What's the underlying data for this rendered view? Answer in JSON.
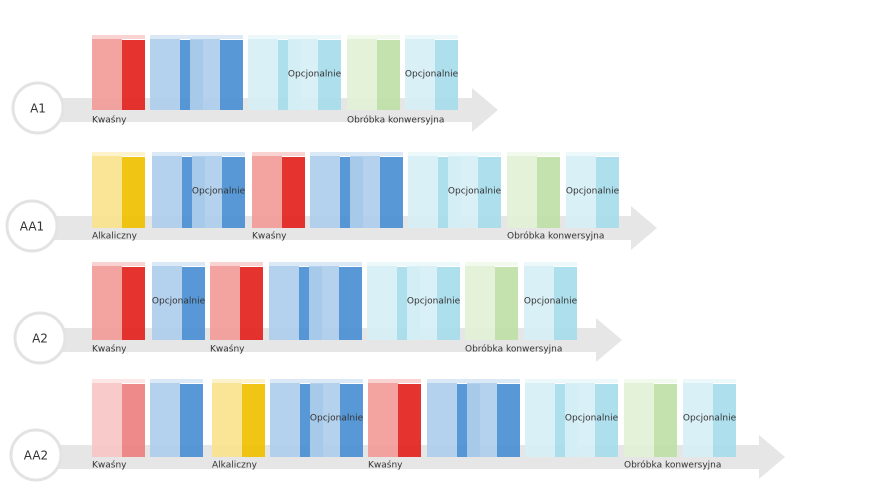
{
  "rows": [
    {
      "label": "A1",
      "tanks": [
        {
          "color": "#e3221d"
        },
        {
          "color": "#4a8fd2"
        },
        {
          "color": "#4a8fd2"
        },
        {
          "color": "#a6dcea"
        },
        {
          "color": "#a6dcea",
          "label": "Opcjonalnie"
        },
        {
          "color": "#bfe0a6"
        },
        {
          "color": "#a6dcea",
          "label": "Opcjonalnie"
        }
      ],
      "steps": [
        "Kwaśny",
        "Obróbka konwersyjna"
      ]
    },
    {
      "label": "AA1",
      "tanks": [
        {
          "color": "#f0c000"
        },
        {
          "color": "#4a8fd2"
        },
        {
          "color": "#4a8fd2",
          "label": "Opcjonalnie"
        },
        {
          "color": "#e3221d"
        },
        {
          "color": "#4a8fd2"
        },
        {
          "color": "#4a8fd2"
        },
        {
          "color": "#a6dcea"
        },
        {
          "color": "#a6dcea",
          "label": "Opcjonalnie"
        },
        {
          "color": "#bfe0a6"
        },
        {
          "color": "#a6dcea",
          "label": "Opcjonalnie"
        }
      ],
      "steps": [
        "Alkaliczny",
        "Kwaśny",
        "Obróbka konwersyjna"
      ]
    },
    {
      "label": "A2",
      "tanks": [
        {
          "color": "#e3221d"
        },
        {
          "color": "#4a8fd2",
          "label": "Opcjonalnie"
        },
        {
          "color": "#e3221d"
        },
        {
          "color": "#4a8fd2"
        },
        {
          "color": "#4a8fd2"
        },
        {
          "color": "#a6dcea"
        },
        {
          "color": "#a6dcea",
          "label": "Opcjonalnie"
        },
        {
          "color": "#bfe0a6"
        },
        {
          "color": "#a6dcea",
          "label": "Opcjonalnie"
        }
      ],
      "steps": [
        "Kwaśny",
        "Kwaśny",
        "Obróbka konwersyjna"
      ]
    },
    {
      "label": "AA2",
      "tanks": [
        {
          "color": "#ee8080"
        },
        {
          "color": "#4a8fd2"
        },
        {
          "color": "#f0c000"
        },
        {
          "color": "#4a8fd2"
        },
        {
          "color": "#4a8fd2",
          "label": "Opcjonalnie"
        },
        {
          "color": "#e3221d"
        },
        {
          "color": "#4a8fd2"
        },
        {
          "color": "#4a8fd2"
        },
        {
          "color": "#a6dcea"
        },
        {
          "color": "#a6dcea",
          "label": "Opcjonalnie"
        },
        {
          "color": "#bfe0a6"
        },
        {
          "color": "#a6dcea",
          "label": "Opcjonalnie"
        }
      ],
      "steps": [
        "Kwaśny",
        "Alkaliczny",
        "Kwaśny",
        "Obróbka konwersyjna"
      ]
    }
  ]
}
